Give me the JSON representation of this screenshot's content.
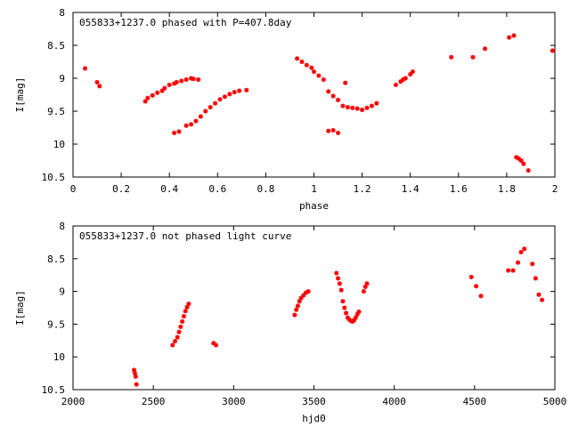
{
  "chart_data": [
    {
      "type": "scatter",
      "title": "055833+1237.0 phased with P=407.8day",
      "xlabel": "phase",
      "ylabel": "I[mag]",
      "xlim": [
        0,
        2
      ],
      "ylim": [
        10.5,
        8
      ],
      "y_inverted": true,
      "xticks": [
        0,
        0.2,
        0.4,
        0.6,
        0.8,
        1,
        1.2,
        1.4,
        1.6,
        1.8,
        2
      ],
      "xtick_labels": [
        "0",
        "0.2",
        "0.4",
        "0.6",
        "0.8",
        "1",
        "1.2",
        "1.4",
        "1.6",
        "1.8",
        "2"
      ],
      "yticks": [
        8,
        8.5,
        9,
        9.5,
        10,
        10.5
      ],
      "ytick_labels": [
        "8",
        "8.5",
        "9",
        "9.5",
        "10",
        "10.5"
      ],
      "grid": false,
      "marker_color": "#ff0000",
      "series": [
        {
          "x": [
            0.05,
            0.1,
            0.11,
            0.3,
            0.31,
            0.33,
            0.35,
            0.37,
            0.38,
            0.4,
            0.42,
            0.43,
            0.45,
            0.47,
            0.49,
            0.5,
            0.52,
            0.42,
            0.44,
            0.47,
            0.49,
            0.51,
            0.53,
            0.55,
            0.57,
            0.59,
            0.61,
            0.63,
            0.65,
            0.67,
            0.69,
            0.72,
            0.93,
            0.95,
            0.97,
            0.99,
            1.0,
            1.02,
            1.04,
            1.06,
            1.08,
            1.1,
            1.12,
            1.14,
            1.16,
            1.18,
            1.2,
            1.22,
            1.24,
            1.26,
            1.06,
            1.08,
            1.1,
            1.13,
            1.34,
            1.36,
            1.37,
            1.38,
            1.4,
            1.41,
            1.57,
            1.66,
            1.71,
            1.81,
            1.83,
            1.84,
            1.85,
            1.86,
            1.87,
            1.89,
            1.99
          ],
          "y": [
            8.85,
            9.06,
            9.12,
            9.35,
            9.3,
            9.26,
            9.22,
            9.19,
            9.15,
            9.1,
            9.08,
            9.06,
            9.04,
            9.02,
            9.0,
            9.01,
            9.02,
            9.83,
            9.81,
            9.72,
            9.7,
            9.65,
            9.58,
            9.5,
            9.44,
            9.38,
            9.32,
            9.28,
            9.24,
            9.21,
            9.19,
            9.18,
            8.7,
            8.75,
            8.8,
            8.84,
            8.9,
            8.96,
            9.02,
            9.2,
            9.27,
            9.33,
            9.42,
            9.44,
            9.45,
            9.46,
            9.48,
            9.45,
            9.42,
            9.38,
            9.8,
            9.79,
            9.83,
            9.07,
            9.1,
            9.05,
            9.02,
            9.0,
            8.94,
            8.9,
            8.68,
            8.68,
            8.55,
            8.38,
            8.35,
            10.2,
            10.22,
            10.25,
            10.3,
            10.4,
            8.58
          ]
        }
      ]
    },
    {
      "type": "scatter",
      "title": "055833+1237.0 not phased light curve",
      "xlabel": "hjd0",
      "ylabel": "I[mag]",
      "xlim": [
        2000,
        5000
      ],
      "ylim": [
        10.5,
        8
      ],
      "y_inverted": true,
      "xticks": [
        2000,
        2500,
        3000,
        3500,
        4000,
        4500,
        5000
      ],
      "xtick_labels": [
        "2000",
        "2500",
        "3000",
        "3500",
        "4000",
        "4500",
        "5000"
      ],
      "yticks": [
        8,
        8.5,
        9,
        9.5,
        10,
        10.5
      ],
      "ytick_labels": [
        "8",
        "8.5",
        "9",
        "9.5",
        "10",
        "10.5"
      ],
      "grid": false,
      "marker_color": "#ff0000",
      "series": [
        {
          "x": [
            2380,
            2385,
            2390,
            2395,
            2620,
            2635,
            2650,
            2660,
            2670,
            2680,
            2690,
            2700,
            2710,
            2720,
            2875,
            2890,
            3380,
            3390,
            3400,
            3410,
            3420,
            3435,
            3450,
            3465,
            3640,
            3650,
            3660,
            3670,
            3680,
            3690,
            3700,
            3710,
            3720,
            3730,
            3740,
            3750,
            3760,
            3770,
            3780,
            3810,
            3820,
            3830,
            4480,
            4510,
            4540,
            4710,
            4740,
            4770,
            4790,
            4810,
            4860,
            4880,
            4900,
            4920
          ],
          "y": [
            10.2,
            10.25,
            10.3,
            10.42,
            9.82,
            9.76,
            9.7,
            9.62,
            9.54,
            9.46,
            9.38,
            9.3,
            9.24,
            9.19,
            9.79,
            9.82,
            9.36,
            9.28,
            9.22,
            9.15,
            9.1,
            9.06,
            9.02,
            9.0,
            8.72,
            8.8,
            8.88,
            8.98,
            9.15,
            9.25,
            9.33,
            9.4,
            9.43,
            9.45,
            9.46,
            9.44,
            9.4,
            9.35,
            9.31,
            9.0,
            8.93,
            8.88,
            8.78,
            8.92,
            9.07,
            8.68,
            8.68,
            8.56,
            8.4,
            8.35,
            8.58,
            8.8,
            9.05,
            9.13
          ]
        }
      ]
    }
  ]
}
